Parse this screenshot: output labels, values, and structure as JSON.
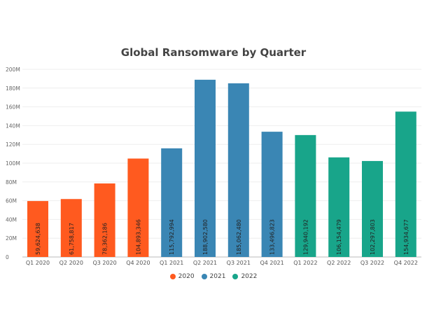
{
  "chart_data": {
    "type": "bar",
    "title": "Global Ransomware by Quarter",
    "xlabel": "",
    "ylabel": "",
    "ylim": [
      0,
      200000000
    ],
    "yticks": [
      {
        "value": 0,
        "label": "0"
      },
      {
        "value": 20000000,
        "label": "20M"
      },
      {
        "value": 40000000,
        "label": "40M"
      },
      {
        "value": 60000000,
        "label": "60M"
      },
      {
        "value": 80000000,
        "label": "80M"
      },
      {
        "value": 100000000,
        "label": "100M"
      },
      {
        "value": 120000000,
        "label": "120M"
      },
      {
        "value": 140000000,
        "label": "140M"
      },
      {
        "value": 160000000,
        "label": "160M"
      },
      {
        "value": 180000000,
        "label": "180M"
      },
      {
        "value": 200000000,
        "label": "200M"
      }
    ],
    "grid": true,
    "legend_position": "bottom",
    "categories": [
      "Q1 2020",
      "Q2 2020",
      "Q3 2020",
      "Q4 2020",
      "Q1 2021",
      "Q2 2021",
      "Q3 2021",
      "Q4 2021",
      "Q1 2022",
      "Q2 2022",
      "Q3 2022",
      "Q4 2022"
    ],
    "values": [
      59624638,
      61758817,
      78362186,
      104893346,
      115792994,
      188902580,
      185062480,
      133496823,
      129940192,
      106154479,
      102297803,
      154934677
    ],
    "data_labels": [
      "59,624,638",
      "61,758,817",
      "78,362,186",
      "104,893,346",
      "115,792,994",
      "188,902,580",
      "185,062,480",
      "133,496,823",
      "129,940,192",
      "106,154,479",
      "102,297,803",
      "154,934,677"
    ],
    "bar_series": [
      "2020",
      "2020",
      "2020",
      "2020",
      "2021",
      "2021",
      "2021",
      "2021",
      "2022",
      "2022",
      "2022",
      "2022"
    ],
    "series": [
      {
        "name": "2020",
        "color": "#FF5A1F"
      },
      {
        "name": "2021",
        "color": "#3A86B4"
      },
      {
        "name": "2022",
        "color": "#18A58A"
      }
    ]
  }
}
